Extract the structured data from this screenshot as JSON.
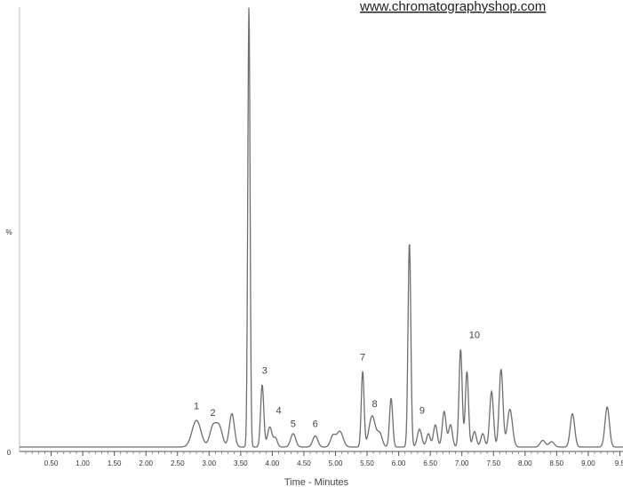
{
  "watermark": "www.chromatographyshop.com",
  "chart_data": {
    "type": "line",
    "title": "",
    "xlabel": "Time - Minutes",
    "ylabel": "%",
    "y_axis_labels": [
      "0",
      "%"
    ],
    "xlim": [
      0.0,
      9.55
    ],
    "ylim": [
      0,
      100
    ],
    "x_ticks": [
      "0.50",
      "1.00",
      "1.50",
      "2.00",
      "2.50",
      "3.00",
      "3.50",
      "4.00",
      "4.50",
      "5.00",
      "5.50",
      "6.00",
      "6.50",
      "7.00",
      "7.50",
      "8.00",
      "8.50",
      "9.00",
      "9.5"
    ],
    "grid": false,
    "legend": "none",
    "line_color": "#6e6e6e",
    "baseline": 1.0,
    "peaks": [
      {
        "rt": 2.8,
        "height": 6.0,
        "width": 0.07
      },
      {
        "rt": 3.06,
        "height": 4.5,
        "width": 0.05
      },
      {
        "rt": 3.16,
        "height": 4.5,
        "width": 0.05
      },
      {
        "rt": 3.36,
        "height": 7.5,
        "width": 0.04
      },
      {
        "rt": 3.63,
        "height": 99.0,
        "width": 0.018
      },
      {
        "rt": 3.84,
        "height": 14.0,
        "width": 0.025
      },
      {
        "rt": 3.96,
        "height": 4.5,
        "width": 0.035
      },
      {
        "rt": 4.05,
        "height": 2.0,
        "width": 0.03
      },
      {
        "rt": 4.33,
        "height": 3.0,
        "width": 0.04
      },
      {
        "rt": 4.68,
        "height": 2.5,
        "width": 0.04
      },
      {
        "rt": 4.96,
        "height": 2.5,
        "width": 0.04
      },
      {
        "rt": 5.07,
        "height": 3.5,
        "width": 0.05
      },
      {
        "rt": 5.43,
        "height": 17.0,
        "width": 0.022
      },
      {
        "rt": 5.58,
        "height": 7.0,
        "width": 0.05
      },
      {
        "rt": 5.7,
        "height": 3.0,
        "width": 0.04
      },
      {
        "rt": 5.88,
        "height": 11.0,
        "width": 0.025
      },
      {
        "rt": 6.17,
        "height": 46.0,
        "width": 0.022
      },
      {
        "rt": 6.33,
        "height": 4.0,
        "width": 0.035
      },
      {
        "rt": 6.47,
        "height": 3.0,
        "width": 0.03
      },
      {
        "rt": 6.58,
        "height": 5.0,
        "width": 0.03
      },
      {
        "rt": 6.72,
        "height": 8.0,
        "width": 0.03
      },
      {
        "rt": 6.82,
        "height": 5.0,
        "width": 0.03
      },
      {
        "rt": 6.98,
        "height": 22.0,
        "width": 0.025
      },
      {
        "rt": 7.08,
        "height": 17.0,
        "width": 0.025
      },
      {
        "rt": 7.2,
        "height": 3.5,
        "width": 0.03
      },
      {
        "rt": 7.33,
        "height": 3.0,
        "width": 0.03
      },
      {
        "rt": 7.47,
        "height": 12.5,
        "width": 0.03
      },
      {
        "rt": 7.62,
        "height": 17.5,
        "width": 0.03
      },
      {
        "rt": 7.76,
        "height": 8.5,
        "width": 0.04
      },
      {
        "rt": 8.28,
        "height": 1.5,
        "width": 0.04
      },
      {
        "rt": 8.42,
        "height": 1.2,
        "width": 0.04
      },
      {
        "rt": 8.75,
        "height": 7.5,
        "width": 0.035
      },
      {
        "rt": 9.3,
        "height": 9.0,
        "width": 0.035
      }
    ],
    "peak_labels": [
      {
        "text": "1",
        "rt": 2.8,
        "y": 9.5
      },
      {
        "text": "2",
        "rt": 3.06,
        "y": 8.0
      },
      {
        "text": "3",
        "rt": 3.88,
        "y": 17.5
      },
      {
        "text": "4",
        "rt": 4.1,
        "y": 8.5
      },
      {
        "text": "5",
        "rt": 4.33,
        "y": 5.5
      },
      {
        "text": "6",
        "rt": 4.68,
        "y": 5.5
      },
      {
        "text": "7",
        "rt": 5.43,
        "y": 20.5
      },
      {
        "text": "8",
        "rt": 5.62,
        "y": 10.0
      },
      {
        "text": "9",
        "rt": 6.37,
        "y": 8.5
      },
      {
        "text": "10",
        "rt": 7.2,
        "y": 25.5
      }
    ]
  }
}
